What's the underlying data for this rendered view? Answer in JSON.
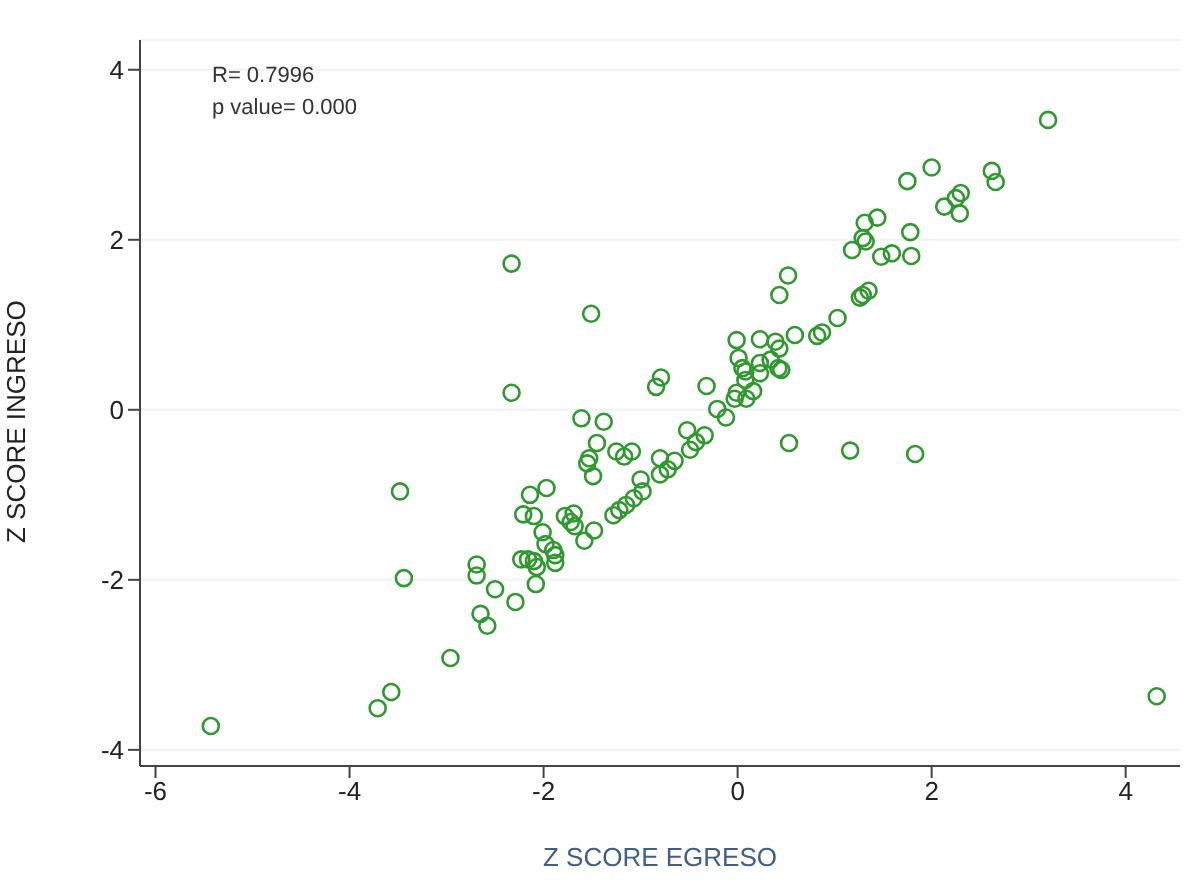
{
  "chart_data": {
    "type": "scatter",
    "xlabel": "Z SCORE  EGRESO",
    "ylabel": "Z SCORE  INGRESO",
    "annotations": [
      "R= 0.7996",
      "p value= 0.000"
    ],
    "xlim": [
      -6.16,
      4.56
    ],
    "ylim": [
      -4.19,
      4.35
    ],
    "xticks": [
      -6,
      -4,
      -2,
      0,
      2,
      4
    ],
    "yticks": [
      -4,
      -2,
      0,
      2,
      4
    ],
    "grid": "y",
    "marker": "circle",
    "series": [
      {
        "color": "#2e9a2e",
        "x": [
          -5.43,
          -3.71,
          -3.57,
          -3.48,
          -3.44,
          -2.96,
          -2.69,
          -2.69,
          -2.65,
          -2.58,
          -2.5,
          -2.29,
          -2.33,
          -2.33,
          -2.14,
          -2.21,
          -2.1,
          -1.97,
          -2.01,
          -1.98,
          -1.9,
          -2.23,
          -2.16,
          -2.1,
          -2.07,
          -2.08,
          -1.88,
          -1.88,
          -1.51,
          -1.61,
          -1.38,
          -1.45,
          -1.53,
          -1.55,
          -1.49,
          -1.25,
          -1.17,
          -1.09,
          -0.8,
          -0.8,
          -0.72,
          -0.65,
          -1.0,
          -1.78,
          -1.69,
          -1.72,
          -1.68,
          -1.58,
          -1.48,
          -1.28,
          -1.22,
          -1.15,
          -1.07,
          -0.98,
          -0.79,
          -0.84,
          -0.32,
          -0.21,
          -0.12,
          -0.52,
          -0.43,
          -0.34,
          -0.49,
          3.2,
          2.0,
          1.75,
          2.62,
          2.66,
          2.13,
          2.25,
          2.3,
          2.29,
          1.31,
          1.44,
          1.29,
          1.32,
          1.18,
          1.78,
          1.48,
          1.59,
          1.79,
          0.52,
          0.43,
          1.26,
          1.29,
          1.35,
          1.03,
          0.82,
          0.87,
          0.59,
          -0.01,
          0.23,
          0.39,
          0.43,
          0.01,
          0.42,
          0.45,
          0.05,
          0.08,
          0.23,
          0.34,
          0.23,
          0.16,
          -0.03,
          0.09,
          0.08,
          -0.01,
          0.53,
          1.16,
          1.83,
          4.32
        ],
        "values": [
          -3.72,
          -3.51,
          -3.32,
          -0.96,
          -1.98,
          -2.92,
          -1.82,
          -1.95,
          -2.4,
          -2.54,
          -2.11,
          -2.26,
          1.72,
          0.2,
          -1.0,
          -1.23,
          -1.25,
          -0.92,
          -1.44,
          -1.58,
          -1.65,
          -1.76,
          -1.76,
          -1.78,
          -1.85,
          -2.05,
          -1.8,
          -1.71,
          1.13,
          -0.1,
          -0.14,
          -0.39,
          -0.57,
          -0.63,
          -0.78,
          -0.49,
          -0.55,
          -0.49,
          -0.57,
          -0.76,
          -0.7,
          -0.6,
          -0.82,
          -1.25,
          -1.22,
          -1.32,
          -1.37,
          -1.54,
          -1.42,
          -1.24,
          -1.18,
          -1.12,
          -1.04,
          -0.96,
          0.38,
          0.27,
          0.28,
          0.01,
          -0.09,
          -0.24,
          -0.38,
          -0.3,
          -0.47,
          3.41,
          2.85,
          2.69,
          2.81,
          2.68,
          2.39,
          2.49,
          2.55,
          2.31,
          2.2,
          2.26,
          2.02,
          1.98,
          1.88,
          2.09,
          1.8,
          1.84,
          1.81,
          1.58,
          1.35,
          1.32,
          1.35,
          1.4,
          1.08,
          0.87,
          0.91,
          0.88,
          0.82,
          0.83,
          0.8,
          0.72,
          0.61,
          0.49,
          0.47,
          0.49,
          0.45,
          0.55,
          0.59,
          0.43,
          0.22,
          0.13,
          0.13,
          0.35,
          0.2,
          -0.39,
          -0.48,
          -0.52,
          -3.37
        ]
      }
    ]
  }
}
